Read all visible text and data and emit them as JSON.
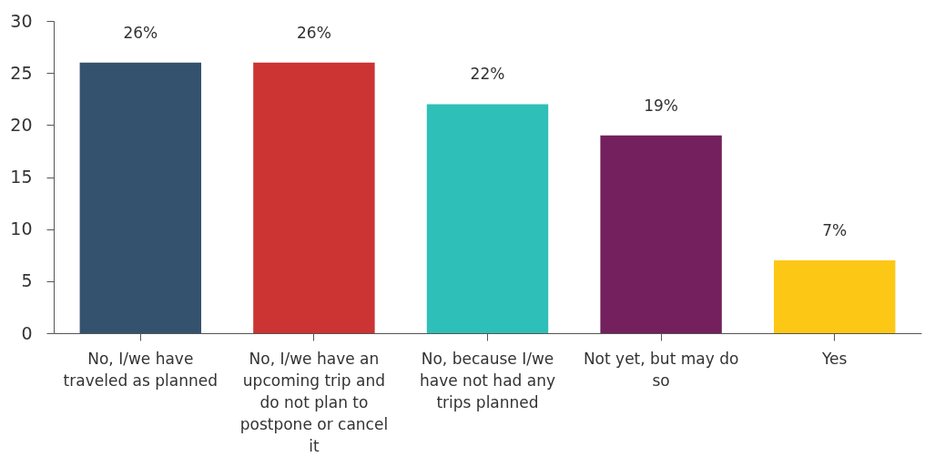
{
  "chart_data": {
    "type": "bar",
    "categories": [
      "No, I/we have traveled as planned",
      "No, I/we have an upcoming trip and do not plan to postpone or cancel it",
      "No, because I/we have not had any trips planned",
      "Not yet, but may do so",
      "Yes"
    ],
    "values": [
      26,
      26,
      22,
      19,
      7
    ],
    "colors": [
      "#34526e",
      "#cc3333",
      "#2ebfb8",
      "#741f5e",
      "#fdc716"
    ],
    "value_labels": [
      "26%",
      "26%",
      "22%",
      "19%",
      "7%"
    ],
    "ylim": [
      0,
      30
    ],
    "yticks": [
      0,
      5,
      10,
      15,
      20,
      25,
      30
    ],
    "grid": false,
    "legend": false
  }
}
